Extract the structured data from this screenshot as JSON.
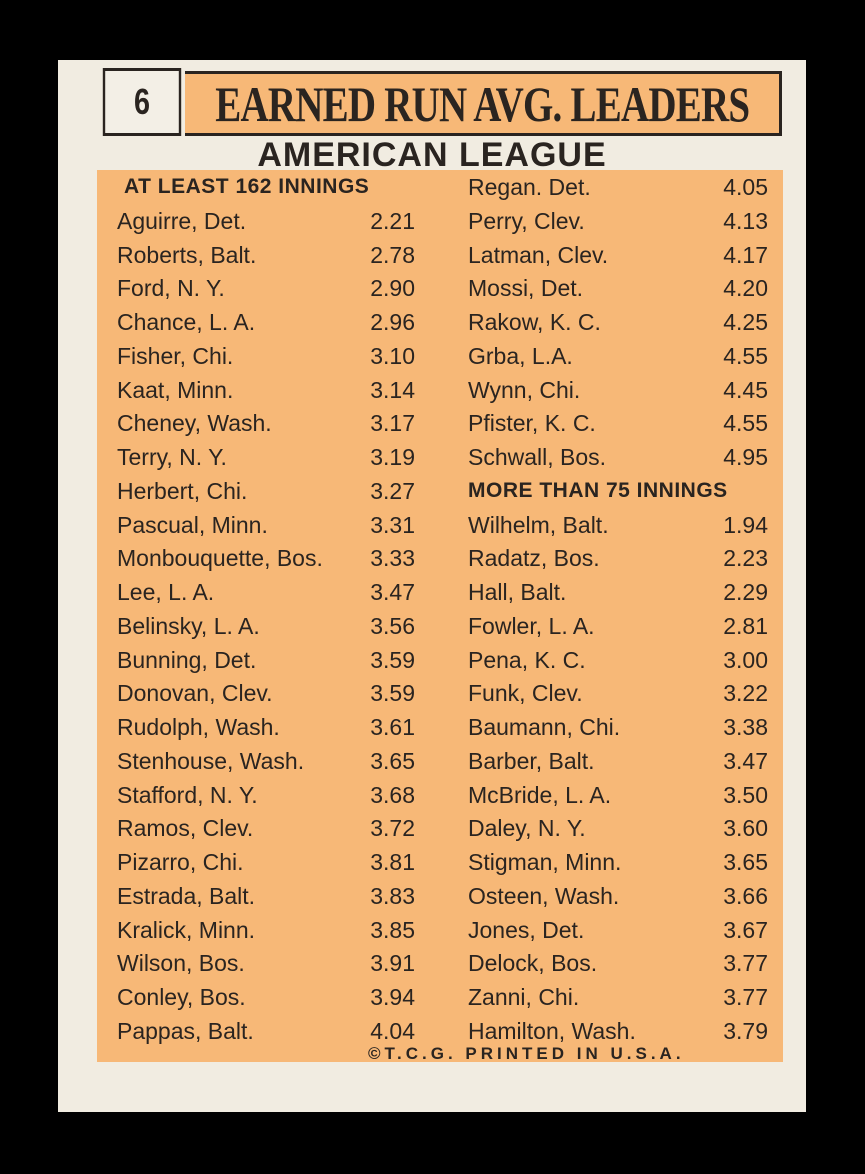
{
  "card": {
    "number": "6",
    "title": "EARNED RUN AVG. LEADERS",
    "league": "AMERICAN LEAGUE",
    "footer": "©T.C.G. PRINTED IN U.S.A."
  },
  "left_column": {
    "header": "AT LEAST 162 INNINGS",
    "rows": [
      {
        "name": "Aguirre, Det.",
        "era": "2.21"
      },
      {
        "name": "Roberts, Balt.",
        "era": "2.78"
      },
      {
        "name": "Ford, N. Y.",
        "era": "2.90"
      },
      {
        "name": "Chance, L. A.",
        "era": "2.96"
      },
      {
        "name": "Fisher, Chi.",
        "era": "3.10"
      },
      {
        "name": "Kaat, Minn.",
        "era": "3.14"
      },
      {
        "name": "Cheney, Wash.",
        "era": "3.17"
      },
      {
        "name": "Terry, N. Y.",
        "era": "3.19"
      },
      {
        "name": "Herbert, Chi.",
        "era": "3.27"
      },
      {
        "name": "Pascual, Minn.",
        "era": "3.31"
      },
      {
        "name": "Monbouquette, Bos.",
        "era": "3.33"
      },
      {
        "name": "Lee, L. A.",
        "era": "3.47"
      },
      {
        "name": "Belinsky, L. A.",
        "era": "3.56"
      },
      {
        "name": "Bunning, Det.",
        "era": "3.59"
      },
      {
        "name": "Donovan, Clev.",
        "era": "3.59"
      },
      {
        "name": "Rudolph, Wash.",
        "era": "3.61"
      },
      {
        "name": "Stenhouse, Wash.",
        "era": "3.65"
      },
      {
        "name": "Stafford, N. Y.",
        "era": "3.68"
      },
      {
        "name": "Ramos, Clev.",
        "era": "3.72"
      },
      {
        "name": "Pizarro, Chi.",
        "era": "3.81"
      },
      {
        "name": "Estrada, Balt.",
        "era": "3.83"
      },
      {
        "name": "Kralick, Minn.",
        "era": "3.85"
      },
      {
        "name": "Wilson, Bos.",
        "era": "3.91"
      },
      {
        "name": "Conley, Bos.",
        "era": "3.94"
      },
      {
        "name": "Pappas, Balt.",
        "era": "4.04"
      }
    ]
  },
  "right_column": {
    "rows_top": [
      {
        "name": "Regan. Det.",
        "era": "4.05"
      },
      {
        "name": "Perry, Clev.",
        "era": "4.13"
      },
      {
        "name": "Latman, Clev.",
        "era": "4.17"
      },
      {
        "name": "Mossi, Det.",
        "era": "4.20"
      },
      {
        "name": "Rakow, K. C.",
        "era": "4.25"
      },
      {
        "name": "Grba, L.A.",
        "era": "4.55"
      },
      {
        "name": "Wynn, Chi.",
        "era": "4.45"
      },
      {
        "name": "Pfister, K. C.",
        "era": "4.55"
      },
      {
        "name": "Schwall, Bos.",
        "era": "4.95"
      }
    ],
    "header": "MORE THAN 75 INNINGS",
    "rows_bottom": [
      {
        "name": "Wilhelm, Balt.",
        "era": "1.94"
      },
      {
        "name": "Radatz, Bos.",
        "era": "2.23"
      },
      {
        "name": "Hall, Balt.",
        "era": "2.29"
      },
      {
        "name": "Fowler, L. A.",
        "era": "2.81"
      },
      {
        "name": "Pena, K. C.",
        "era": "3.00"
      },
      {
        "name": "Funk, Clev.",
        "era": "3.22"
      },
      {
        "name": "Baumann, Chi.",
        "era": "3.38"
      },
      {
        "name": "Barber, Balt.",
        "era": "3.47"
      },
      {
        "name": "McBride, L. A.",
        "era": "3.50"
      },
      {
        "name": "Daley, N. Y.",
        "era": "3.60"
      },
      {
        "name": "Stigman, Minn.",
        "era": "3.65"
      },
      {
        "name": "Osteen, Wash.",
        "era": "3.66"
      },
      {
        "name": "Jones, Det.",
        "era": "3.67"
      },
      {
        "name": "Delock, Bos.",
        "era": "3.77"
      },
      {
        "name": "Zanni, Chi.",
        "era": "3.77"
      },
      {
        "name": "Hamilton, Wash.",
        "era": "3.79"
      }
    ]
  },
  "colors": {
    "panel": "#f7b877",
    "card": "#f1ece1",
    "ink": "#2a2420",
    "background": "#000000"
  }
}
